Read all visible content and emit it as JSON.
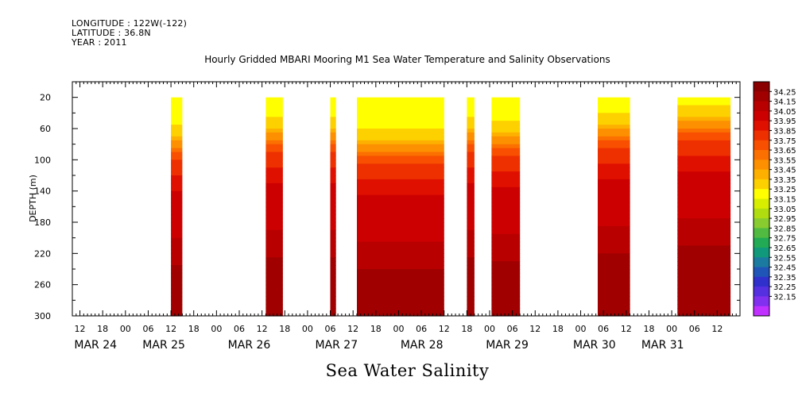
{
  "header": {
    "longitude": "LONGITUDE : 122W(-122)",
    "latitude": "LATITUDE : 36.8N",
    "year": "YEAR : 2011"
  },
  "chart_data": {
    "type": "heatmap",
    "title": "Hourly Gridded MBARI Mooring M1 Sea Water Temperature and Salinity Observations",
    "variable": "Sea Water Salinity",
    "ylabel": "DEPTH (m)",
    "ylim": [
      300,
      0
    ],
    "y_ticks": [
      20,
      60,
      100,
      140,
      180,
      220,
      260,
      300
    ],
    "x_start": "MAR 24 2011 10:00",
    "x_end": "MAR 31 2011 14:00",
    "hour_ticks": [
      {
        "t": 2,
        "label": "12"
      },
      {
        "t": 8,
        "label": "18"
      },
      {
        "t": 14,
        "label": "00"
      },
      {
        "t": 20,
        "label": "06"
      },
      {
        "t": 26,
        "label": "12"
      },
      {
        "t": 32,
        "label": "18"
      },
      {
        "t": 38,
        "label": "00"
      },
      {
        "t": 44,
        "label": "06"
      },
      {
        "t": 50,
        "label": "12"
      },
      {
        "t": 56,
        "label": "18"
      },
      {
        "t": 62,
        "label": "00"
      },
      {
        "t": 68,
        "label": "06"
      },
      {
        "t": 74,
        "label": "12"
      },
      {
        "t": 80,
        "label": "18"
      },
      {
        "t": 86,
        "label": "00"
      },
      {
        "t": 92,
        "label": "06"
      },
      {
        "t": 98,
        "label": "12"
      },
      {
        "t": 104,
        "label": "18"
      },
      {
        "t": 110,
        "label": "00"
      },
      {
        "t": 116,
        "label": "06"
      },
      {
        "t": 122,
        "label": "12"
      },
      {
        "t": 128,
        "label": "18"
      },
      {
        "t": 134,
        "label": "00"
      },
      {
        "t": 140,
        "label": "06"
      },
      {
        "t": 146,
        "label": "12"
      },
      {
        "t": 152,
        "label": "18"
      },
      {
        "t": 158,
        "label": "00"
      },
      {
        "t": 164,
        "label": "06"
      },
      {
        "t": 170,
        "label": "12"
      }
    ],
    "day_labels": [
      {
        "t": 0.5,
        "label": "MAR 24"
      },
      {
        "t": 18.5,
        "label": "MAR 25"
      },
      {
        "t": 41,
        "label": "MAR 26"
      },
      {
        "t": 64,
        "label": "MAR 27"
      },
      {
        "t": 86.5,
        "label": "MAR 28"
      },
      {
        "t": 109,
        "label": "MAR 29"
      },
      {
        "t": 132,
        "label": "MAR 30"
      },
      {
        "t": 150,
        "label": "MAR 31"
      }
    ],
    "colorbar_levels": [
      "34.25",
      "34.15",
      "34.05",
      "33.95",
      "33.85",
      "33.75",
      "33.65",
      "33.55",
      "33.45",
      "33.35",
      "33.25",
      "33.15",
      "33.05",
      "32.95",
      "32.85",
      "32.75",
      "32.65",
      "32.55",
      "32.45",
      "32.35",
      "32.25",
      "32.15"
    ],
    "colorbar_colors": [
      "#8a0000",
      "#a00000",
      "#b80000",
      "#cc0000",
      "#e01000",
      "#ee3000",
      "#f85000",
      "#fb7000",
      "#fc9000",
      "#fdb000",
      "#fdd000",
      "#ffff00",
      "#d8ee00",
      "#b0dd10",
      "#88cc30",
      "#50bb40",
      "#22aa55",
      "#10997a",
      "#1a7aa0",
      "#2055b8",
      "#3030cc",
      "#5530e0",
      "#8030ee",
      "#c030ff"
    ],
    "data_segments": [
      {
        "start": 26,
        "end": 29,
        "thermocline": 90
      },
      {
        "start": 51,
        "end": 55.5,
        "thermocline": 80
      },
      {
        "start": 68,
        "end": 69.5,
        "thermocline": 80
      },
      {
        "start": 75,
        "end": 98,
        "thermocline": 95
      },
      {
        "start": 104,
        "end": 106,
        "thermocline": 80
      },
      {
        "start": 110.5,
        "end": 118,
        "thermocline": 85
      },
      {
        "start": 138.5,
        "end": 147,
        "thermocline": 75
      },
      {
        "start": 159.5,
        "end": 173.5,
        "thermocline": 65
      }
    ],
    "salinity_profile": [
      {
        "depth": 20,
        "value": 33.15
      },
      {
        "depth": 50,
        "value": 33.2
      },
      {
        "depth": 70,
        "value": 33.35
      },
      {
        "depth": 85,
        "value": 33.55
      },
      {
        "depth": 100,
        "value": 33.75
      },
      {
        "depth": 120,
        "value": 33.85
      },
      {
        "depth": 140,
        "value": 33.95
      },
      {
        "depth": 180,
        "value": 34.0
      },
      {
        "depth": 220,
        "value": 34.1
      },
      {
        "depth": 250,
        "value": 34.2
      },
      {
        "depth": 280,
        "value": 34.15
      },
      {
        "depth": 300,
        "value": 34.2
      }
    ]
  }
}
